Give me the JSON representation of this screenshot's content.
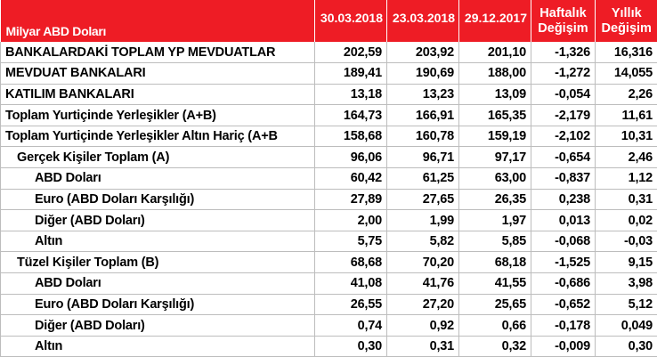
{
  "header": {
    "unit_label": "Milyar ABD Doları",
    "dates": [
      "30.03.2018",
      "23.03.2018",
      "29.12.2017"
    ],
    "weekly_line1": "Haftalık",
    "weekly_line2": "Değişim",
    "yearly_line1": "Yıllık",
    "yearly_line2": "Değişim"
  },
  "rows": [
    {
      "label": "BANKALARDAKİ TOPLAM YP MEVDUATLAR",
      "level": 0,
      "values": [
        "202,59",
        "203,92",
        "201,10",
        "-1,326",
        "16,316"
      ]
    },
    {
      "label": "MEVDUAT BANKALARI",
      "level": 0,
      "values": [
        "189,41",
        "190,69",
        "188,00",
        "-1,272",
        "14,055"
      ]
    },
    {
      "label": "KATILIM BANKALARI",
      "level": 0,
      "values": [
        "13,18",
        "13,23",
        "13,09",
        "-0,054",
        "2,26"
      ]
    },
    {
      "label": "Toplam Yurtiçinde Yerleşikler (A+B)",
      "level": 0,
      "values": [
        "164,73",
        "166,91",
        "165,35",
        "-2,179",
        "11,61"
      ]
    },
    {
      "label": "Toplam Yurtiçinde Yerleşikler Altın Hariç (A+B",
      "level": 0,
      "values": [
        "158,68",
        "160,78",
        "159,19",
        "-2,102",
        "10,31"
      ]
    },
    {
      "label": "Gerçek Kişiler Toplam (A)",
      "level": 1,
      "values": [
        "96,06",
        "96,71",
        "97,17",
        "-0,654",
        "2,46"
      ]
    },
    {
      "label": "ABD Doları",
      "level": 2,
      "values": [
        "60,42",
        "61,25",
        "63,00",
        "-0,837",
        "1,12"
      ]
    },
    {
      "label": "Euro (ABD Doları Karşılığı)",
      "level": 2,
      "values": [
        "27,89",
        "27,65",
        "26,35",
        "0,238",
        "0,31"
      ]
    },
    {
      "label": "Diğer (ABD Doları)",
      "level": 2,
      "values": [
        "2,00",
        "1,99",
        "1,97",
        "0,013",
        "0,02"
      ]
    },
    {
      "label": "Altın",
      "level": 2,
      "values": [
        "5,75",
        "5,82",
        "5,85",
        "-0,068",
        "-0,03"
      ]
    },
    {
      "label": "Tüzel Kişiler Toplam (B)",
      "level": 1,
      "values": [
        "68,68",
        "70,20",
        "68,18",
        "-1,525",
        "9,15"
      ]
    },
    {
      "label": "ABD Doları",
      "level": 2,
      "values": [
        "41,08",
        "41,76",
        "41,55",
        "-0,686",
        "3,98"
      ]
    },
    {
      "label": "Euro (ABD Doları Karşılığı)",
      "level": 2,
      "values": [
        "26,55",
        "27,20",
        "25,65",
        "-0,652",
        "5,12"
      ]
    },
    {
      "label": "Diğer (ABD Doları)",
      "level": 2,
      "values": [
        "0,74",
        "0,92",
        "0,66",
        "-0,178",
        "0,049"
      ]
    },
    {
      "label": "Altın",
      "level": 2,
      "values": [
        "0,30",
        "0,31",
        "0,32",
        "-0,009",
        "0,30"
      ]
    }
  ],
  "colors": {
    "header_bg": "#ee1c25",
    "header_text": "#ffffff",
    "grid": "#bdbdbd"
  }
}
